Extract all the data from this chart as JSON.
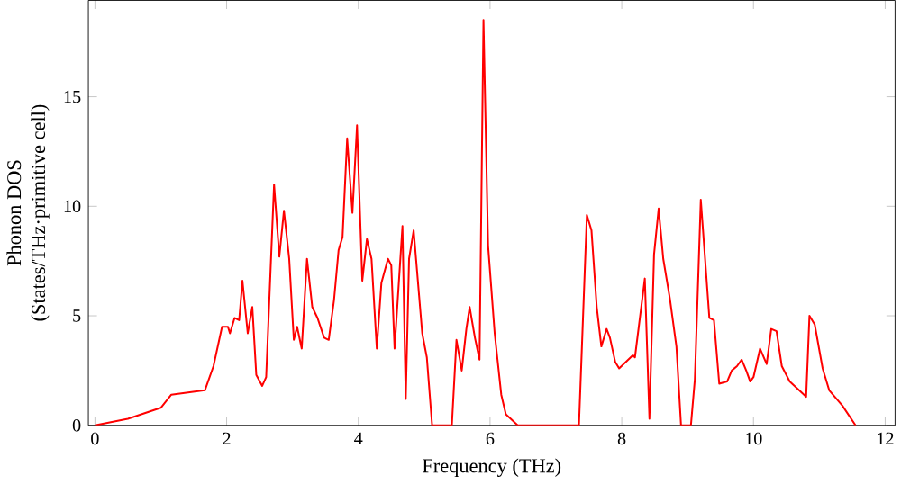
{
  "chart_data": {
    "type": "line",
    "xlabel": "Frequency (THz)",
    "ylabel": "Phonon DOS\n(States/THz·primitive cell)",
    "xlim": [
      -0.1,
      12.15
    ],
    "ylim": [
      0,
      19.4
    ],
    "xticks": [
      0,
      2,
      4,
      6,
      8,
      10,
      12
    ],
    "yticks": [
      0,
      5,
      10,
      15
    ],
    "grid": false,
    "marker": "none",
    "line_style": "solid",
    "series": [
      {
        "color": "#ff0000",
        "x": [
          0.0,
          0.5,
          1.0,
          1.16,
          1.67,
          1.8,
          1.93,
          2.02,
          2.05,
          2.12,
          2.19,
          2.24,
          2.32,
          2.39,
          2.45,
          2.54,
          2.6,
          2.72,
          2.8,
          2.87,
          2.95,
          3.02,
          3.07,
          3.14,
          3.22,
          3.3,
          3.38,
          3.48,
          3.55,
          3.63,
          3.7,
          3.76,
          3.83,
          3.91,
          3.98,
          4.06,
          4.13,
          4.2,
          4.28,
          4.35,
          4.45,
          4.5,
          4.55,
          4.67,
          4.72,
          4.77,
          4.84,
          4.97,
          5.04,
          5.12,
          5.42,
          5.49,
          5.57,
          5.64,
          5.69,
          5.77,
          5.84,
          5.9,
          5.97,
          6.07,
          6.17,
          6.24,
          6.42,
          7.35,
          7.47,
          7.54,
          7.62,
          7.69,
          7.77,
          7.82,
          7.9,
          7.96,
          8.17,
          8.2,
          8.35,
          8.42,
          8.49,
          8.56,
          8.63,
          8.73,
          8.83,
          8.9,
          9.05,
          9.11,
          9.2,
          9.33,
          9.4,
          9.48,
          9.6,
          9.67,
          9.75,
          9.82,
          9.89,
          9.95,
          10.0,
          10.1,
          10.2,
          10.27,
          10.35,
          10.43,
          10.55,
          10.8,
          10.85,
          10.93,
          11.05,
          11.15,
          11.35,
          11.55
        ],
        "values": [
          0.0,
          0.3,
          0.8,
          1.4,
          1.6,
          2.7,
          4.5,
          4.5,
          4.2,
          4.9,
          4.8,
          6.6,
          4.2,
          5.4,
          2.3,
          1.8,
          2.2,
          11.0,
          7.7,
          9.8,
          7.6,
          3.9,
          4.5,
          3.5,
          7.6,
          5.4,
          4.9,
          4.0,
          3.9,
          5.7,
          8.0,
          8.6,
          13.1,
          9.7,
          13.7,
          6.6,
          8.5,
          7.6,
          3.5,
          6.5,
          7.6,
          7.3,
          3.5,
          9.1,
          1.2,
          7.6,
          8.9,
          4.2,
          3.1,
          0.0,
          0.0,
          3.9,
          2.5,
          4.4,
          5.4,
          4.0,
          3.0,
          18.5,
          8.2,
          4.2,
          1.4,
          0.5,
          0.0,
          0.0,
          9.6,
          8.9,
          5.4,
          3.6,
          4.4,
          4.0,
          2.9,
          2.6,
          3.2,
          3.1,
          6.7,
          0.3,
          7.8,
          9.9,
          7.6,
          5.8,
          3.6,
          0.0,
          0.0,
          2.1,
          10.3,
          4.9,
          4.8,
          1.9,
          2.0,
          2.5,
          2.7,
          3.0,
          2.5,
          2.0,
          2.2,
          3.5,
          2.8,
          4.4,
          4.3,
          2.7,
          2.0,
          1.3,
          5.0,
          4.6,
          2.6,
          1.6,
          0.9,
          0.0
        ]
      }
    ]
  }
}
